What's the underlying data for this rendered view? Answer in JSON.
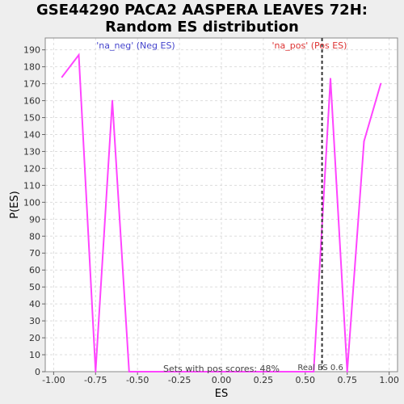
{
  "chart_data": {
    "type": "line",
    "title_lines": [
      "GSE44290 PACA2 AASPERA LEAVES 72H:",
      "Random ES distribution"
    ],
    "xlabel": "ES",
    "ylabel": "P(ES)",
    "xlim": [
      -1.05,
      1.05
    ],
    "ylim": [
      0,
      197
    ],
    "xticks": [
      -1.0,
      -0.75,
      -0.5,
      -0.25,
      0.0,
      0.25,
      0.5,
      0.75,
      1.0
    ],
    "xtick_labels": [
      "-1.00",
      "-0.75",
      "-0.50",
      "-0.25",
      "0.00",
      "0.25",
      "0.50",
      "0.75",
      "1.00"
    ],
    "yticks": [
      0,
      10,
      20,
      30,
      40,
      50,
      60,
      70,
      80,
      90,
      100,
      110,
      120,
      130,
      140,
      150,
      160,
      170,
      180,
      190
    ],
    "grid": true,
    "series": [
      {
        "color": "#ff44ff",
        "x": [
          -0.95,
          -0.85,
          -0.75,
          -0.65,
          -0.55,
          0.55,
          0.65,
          0.75,
          0.85,
          0.95
        ],
        "y": [
          174,
          187,
          0,
          160,
          0,
          0,
          173,
          0,
          136,
          170
        ]
      }
    ],
    "real_es": {
      "value": 0.6,
      "label": "Real ES 0.6",
      "color": "#333333"
    },
    "annotations": {
      "neg_label": "'na_neg' (Neg ES)",
      "neg_color": "#4444cc",
      "pos_label": "'na_pos' (Pos ES)",
      "pos_color": "#dd3333",
      "sets_text": "Sets with pos scores: 48%"
    }
  }
}
